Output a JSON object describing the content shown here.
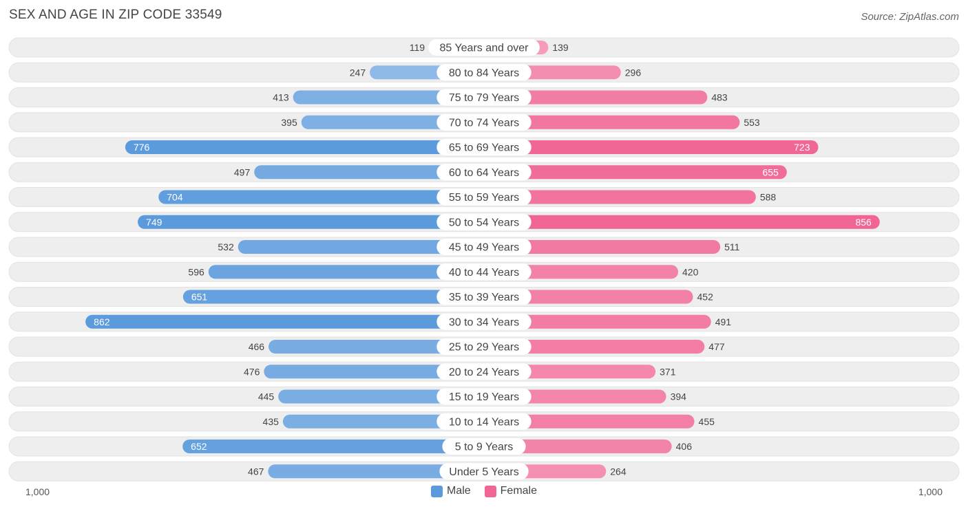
{
  "title": "SEX AND AGE IN ZIP CODE 33549",
  "source": "Source: ZipAtlas.com",
  "colors": {
    "male": "#5b9bdc",
    "male_light": "#a8c8ec",
    "female": "#f06593",
    "female_light": "#f7a8c3",
    "row_bg": "#eeeeee"
  },
  "chart_data": {
    "type": "bar",
    "orientation": "horizontal-butterfly",
    "categories": [
      "85 Years and over",
      "80 to 84 Years",
      "75 to 79 Years",
      "70 to 74 Years",
      "65 to 69 Years",
      "60 to 64 Years",
      "55 to 59 Years",
      "50 to 54 Years",
      "45 to 49 Years",
      "40 to 44 Years",
      "35 to 39 Years",
      "30 to 34 Years",
      "25 to 29 Years",
      "20 to 24 Years",
      "15 to 19 Years",
      "10 to 14 Years",
      "5 to 9 Years",
      "Under 5 Years"
    ],
    "series": [
      {
        "name": "Male",
        "values": [
          119,
          247,
          413,
          395,
          776,
          497,
          704,
          749,
          532,
          596,
          651,
          862,
          466,
          476,
          445,
          435,
          652,
          467
        ]
      },
      {
        "name": "Female",
        "values": [
          139,
          296,
          483,
          553,
          723,
          655,
          588,
          856,
          511,
          420,
          452,
          491,
          477,
          371,
          394,
          455,
          406,
          264
        ]
      }
    ],
    "xlim": [
      -1000,
      1000
    ],
    "axis_labels": {
      "left": "1,000",
      "right": "1,000"
    },
    "legend": {
      "placement": "bottom-center"
    }
  }
}
